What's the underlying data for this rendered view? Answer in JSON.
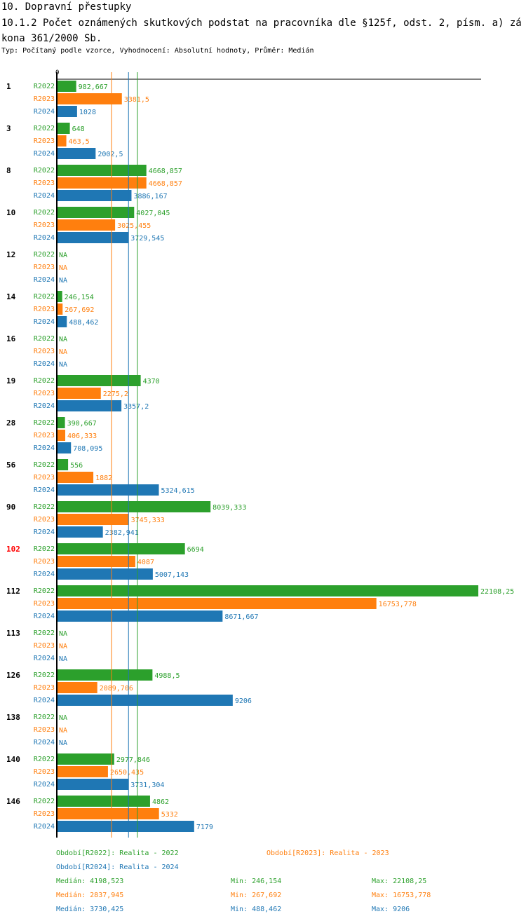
{
  "chart_data": {
    "type": "bar",
    "orientation": "horizontal",
    "title": "10. Dopravní přestupky",
    "subtitle": "10.1.2 Počet oznámených skutkových podstat na pracovníka dle §125f, odst. 2, písm. a) zákona 361/2000 Sb.",
    "note": "Typ: Počítaný podle vzorce, Vyhodnocení: Absolutní hodnoty, Průměr: Medián",
    "axis_zero_label": "0",
    "xlim": [
      0,
      22108.25
    ],
    "highlight_category": "102",
    "categories": [
      "1",
      "3",
      "8",
      "10",
      "12",
      "14",
      "16",
      "19",
      "28",
      "56",
      "90",
      "102",
      "112",
      "113",
      "126",
      "138",
      "140",
      "146"
    ],
    "series": [
      {
        "name": "R2022",
        "color": "#2ca02c",
        "values": [
          982.667,
          648,
          4668.857,
          4027.045,
          null,
          246.154,
          null,
          4370,
          390.667,
          556,
          8039.333,
          6694,
          22108.25,
          null,
          4988.5,
          null,
          2977.846,
          4862
        ],
        "labels": [
          "982,667",
          "648",
          "4668,857",
          "4027,045",
          "NA",
          "246,154",
          "NA",
          "4370",
          "390,667",
          "556",
          "8039,333",
          "6694",
          "22108,25",
          "NA",
          "4988,5",
          "NA",
          "2977,846",
          "4862"
        ]
      },
      {
        "name": "R2023",
        "color": "#ff7f0e",
        "values": [
          3381.5,
          463.5,
          4668.857,
          3025.455,
          null,
          267.692,
          null,
          2275.2,
          406.333,
          1882,
          3745.333,
          4087,
          16753.778,
          null,
          2089.706,
          null,
          2650.435,
          5332
        ],
        "labels": [
          "3381,5",
          "463,5",
          "4668,857",
          "3025,455",
          "NA",
          "267,692",
          "NA",
          "2275,2",
          "406,333",
          "1882",
          "3745,333",
          "4087",
          "16753,778",
          "NA",
          "2089,706",
          "NA",
          "2650,435",
          "5332"
        ]
      },
      {
        "name": "R2024",
        "color": "#1f77b4",
        "values": [
          1028,
          2002.5,
          3886.167,
          3729.545,
          null,
          488.462,
          null,
          3357.2,
          708.095,
          5324.615,
          2382.941,
          5007.143,
          8671.667,
          null,
          9206,
          null,
          3731.304,
          7179
        ],
        "labels": [
          "1028",
          "2002,5",
          "3886,167",
          "3729,545",
          "NA",
          "488,462",
          "NA",
          "3357,2",
          "708,095",
          "5324,615",
          "2382,941",
          "5007,143",
          "8671,667",
          "NA",
          "9206",
          "NA",
          "3731,304",
          "7179"
        ]
      }
    ],
    "medians": [
      {
        "series": "R2022",
        "value": 4198.523
      },
      {
        "series": "R2023",
        "value": 2837.945
      },
      {
        "series": "R2024",
        "value": 3730.425
      }
    ],
    "legend": [
      {
        "text": "Období[R2022]: Realita - 2022",
        "color": "#2ca02c"
      },
      {
        "text": "Období[R2023]: Realita - 2023",
        "color": "#ff7f0e"
      },
      {
        "text": "Období[R2024]: Realita - 2024",
        "color": "#1f77b4"
      }
    ],
    "stats": [
      {
        "median": "Medián: 4198,523",
        "min": "Min: 246,154",
        "max": "Max: 22108,25",
        "color": "#2ca02c"
      },
      {
        "median": "Medián: 2837,945",
        "min": "Min: 267,692",
        "max": "Max: 16753,778",
        "color": "#ff7f0e"
      },
      {
        "median": "Medián: 3730,425",
        "min": "Min: 488,462",
        "max": "Max: 9206",
        "color": "#1f77b4"
      }
    ],
    "legend_placement": "bottom"
  }
}
